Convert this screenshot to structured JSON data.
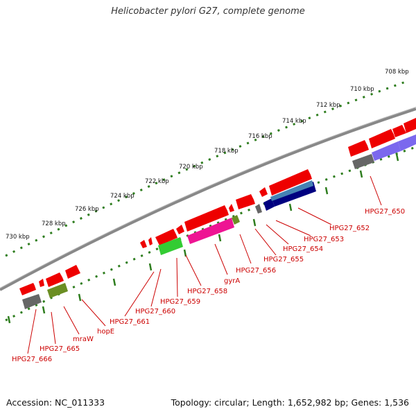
{
  "title": "Helicobacter pylori G27, complete genome",
  "footer": {
    "accession": "Accession: NC_011333",
    "summary": "Topology: circular; Length: 1,652,982 bp; Genes: 1,536"
  },
  "scale_labels": [
    "730 kbp",
    "728 kbp",
    "726 kbp",
    "724 kbp",
    "722 kbp",
    "720 kbp",
    "718 kbp",
    "716 kbp",
    "714 kbp",
    "712 kbp",
    "710 kbp",
    "708 kbp"
  ],
  "gene_labels": [
    "HPG27_666",
    "HPG27_665",
    "mraW",
    "hopE",
    "HPG27_661",
    "HPG27_660",
    "HPG27_659",
    "HPG27_658",
    "gyrA",
    "HPG27_656",
    "HPG27_655",
    "HPG27_654",
    "HPG27_653",
    "HPG27_652",
    "HPG27_650"
  ],
  "colors": {
    "gene_red": "#ee0000",
    "backbone": "#888888",
    "tick_green": "#2e7d1e",
    "label_red": "#cc0000",
    "feature_gray": "#666666",
    "feature_olive": "#6b8e23",
    "feature_green": "#33cc33",
    "feature_magenta": "#ee1493",
    "feature_navy": "#000080",
    "feature_steelblue": "#4682b4",
    "feature_slate": "#7b68ee"
  }
}
